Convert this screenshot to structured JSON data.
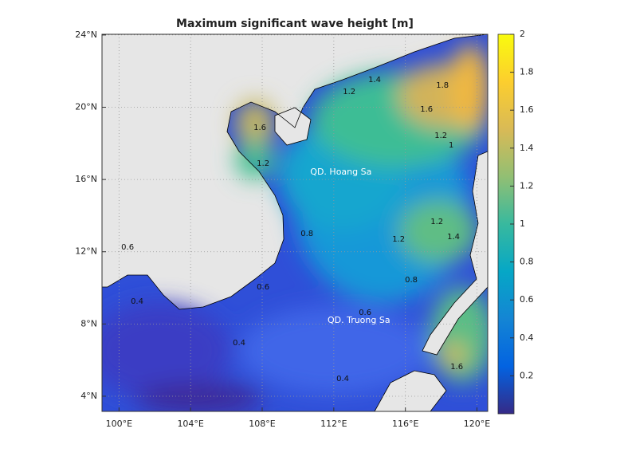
{
  "chart_data": {
    "type": "contour-map",
    "title": "Maximum significant wave height [m]",
    "xlim": [
      99.05,
      120.6
    ],
    "ylim": [
      3.16,
      24.04
    ],
    "xticks": [
      {
        "value": 100,
        "label": "100°E"
      },
      {
        "value": 104,
        "label": "104°E"
      },
      {
        "value": 108,
        "label": "108°E"
      },
      {
        "value": 112,
        "label": "112°E"
      },
      {
        "value": 116,
        "label": "116°E"
      },
      {
        "value": 120,
        "label": "120°E"
      }
    ],
    "yticks": [
      {
        "value": 4,
        "label": "4°N"
      },
      {
        "value": 8,
        "label": "8°N"
      },
      {
        "value": 12,
        "label": "12°N"
      },
      {
        "value": 16,
        "label": "16°N"
      },
      {
        "value": 20,
        "label": "20°N"
      },
      {
        "value": 24,
        "label": "24°N"
      }
    ],
    "grid": true,
    "clim": [
      0,
      2
    ],
    "colorbar_ticks": [
      0.2,
      0.4,
      0.6,
      0.8,
      1,
      1.2,
      1.4,
      1.6,
      1.8,
      2
    ],
    "colormap": [
      "#352a87",
      "#0363e1",
      "#1485d4",
      "#06a7c6",
      "#38b99e",
      "#92bf73",
      "#d9ba56",
      "#fcce2e",
      "#f9fb0e"
    ],
    "annotations": [
      {
        "text": "QD. Hoang Sa",
        "lon": 112.4,
        "lat": 16.4
      },
      {
        "text": "QD. Truong Sa",
        "lon": 113.4,
        "lat": 8.19
      }
    ],
    "contour_labels": [
      {
        "value": 1.4,
        "lon": 114.28,
        "lat": 21.52
      },
      {
        "value": 1.8,
        "lon": 118.07,
        "lat": 21.21
      },
      {
        "value": 1.6,
        "lon": 117.18,
        "lat": 19.89
      },
      {
        "value": 1.2,
        "lon": 117.98,
        "lat": 18.43
      },
      {
        "value": 1,
        "lon": 118.56,
        "lat": 17.9
      },
      {
        "value": 1.6,
        "lon": 107.87,
        "lat": 18.87
      },
      {
        "value": 1.2,
        "lon": 108.05,
        "lat": 16.89
      },
      {
        "value": 0.8,
        "lon": 110.5,
        "lat": 13.0
      },
      {
        "value": 1.2,
        "lon": 117.76,
        "lat": 13.66
      },
      {
        "value": 1.4,
        "lon": 118.69,
        "lat": 12.83
      },
      {
        "value": 1.2,
        "lon": 115.62,
        "lat": 12.69
      },
      {
        "value": 0.8,
        "lon": 116.33,
        "lat": 10.44
      },
      {
        "value": 0.6,
        "lon": 113.75,
        "lat": 8.63
      },
      {
        "value": 0.6,
        "lon": 108.05,
        "lat": 10.04
      },
      {
        "value": 0.4,
        "lon": 106.71,
        "lat": 6.95
      },
      {
        "value": 0.4,
        "lon": 112.5,
        "lat": 4.97
      },
      {
        "value": 1.2,
        "lon": 112.86,
        "lat": 20.86
      },
      {
        "value": 1.6,
        "lon": 118.87,
        "lat": 5.63
      },
      {
        "value": 0.4,
        "lon": 101.01,
        "lat": 9.25
      },
      {
        "value": 0.6,
        "lon": 100.48,
        "lat": 12.25
      }
    ]
  }
}
